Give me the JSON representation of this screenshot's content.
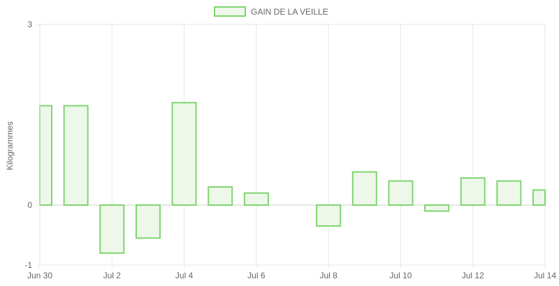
{
  "chart_data": {
    "type": "bar",
    "title": "",
    "xlabel": "",
    "ylabel": "Kilogrammes",
    "legend": {
      "position": "top",
      "label": "GAIN DE LA VEILLE"
    },
    "grid": true,
    "x_ticks": [
      "Jun 30",
      "Jul 2",
      "Jul 4",
      "Jul 6",
      "Jul 8",
      "Jul 10",
      "Jul 12",
      "Jul 14"
    ],
    "y_ticks": [
      "3",
      "0",
      "-1"
    ],
    "ylim": [
      -1,
      3
    ],
    "categories": [
      "Jun 30",
      "Jul 1",
      "Jul 2",
      "Jul 3",
      "Jul 4",
      "Jul 5",
      "Jul 6",
      "Jul 7",
      "Jul 8",
      "Jul 9",
      "Jul 10",
      "Jul 11",
      "Jul 12",
      "Jul 13",
      "Jul 14"
    ],
    "series": [
      {
        "name": "GAIN DE LA VEILLE",
        "values": [
          1.65,
          1.65,
          -0.8,
          -0.55,
          1.7,
          0.3,
          0.2,
          null,
          -0.35,
          0.55,
          0.4,
          -0.1,
          0.45,
          0.4,
          0.25
        ]
      }
    ],
    "colors": {
      "bar_border": "#7ed56f",
      "bar_fill": "#eef8ea",
      "grid": "#e6e6e6",
      "zero_line": "#cccccc",
      "text": "#666666"
    }
  }
}
